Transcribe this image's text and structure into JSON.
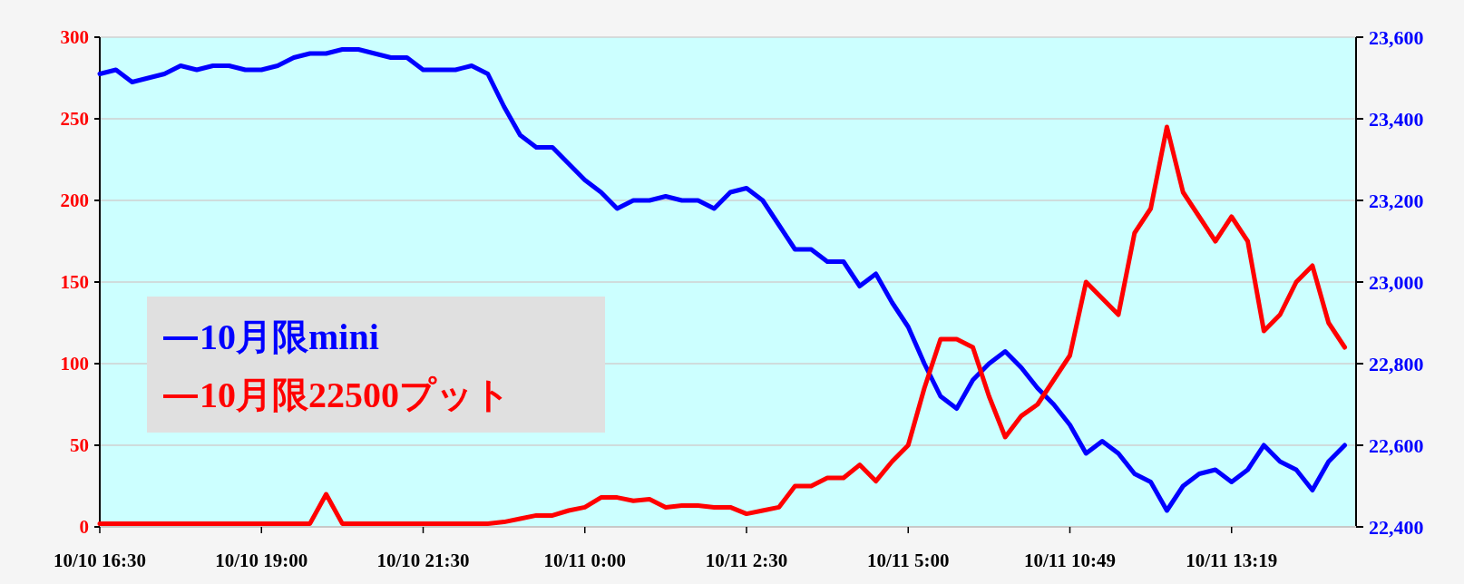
{
  "chart_data": {
    "type": "line",
    "categories": [
      "10/10 16:30",
      null,
      null,
      null,
      null,
      null,
      null,
      null,
      null,
      null,
      "10/10 19:00",
      null,
      null,
      null,
      null,
      null,
      null,
      null,
      null,
      null,
      "10/10 21:30",
      null,
      null,
      null,
      null,
      null,
      null,
      null,
      null,
      null,
      "10/11 0:00",
      null,
      null,
      null,
      null,
      null,
      null,
      null,
      null,
      null,
      "10/11 2:30",
      null,
      null,
      null,
      null,
      null,
      null,
      null,
      null,
      null,
      "10/11 5:00",
      null,
      null,
      null,
      null,
      null,
      null,
      null,
      null,
      null,
      "10/11 10:49",
      null,
      null,
      null,
      null,
      null,
      null,
      null,
      null,
      null,
      "10/11 13:19",
      null,
      null,
      null,
      null,
      null,
      null,
      null
    ],
    "series": [
      {
        "name": "10月限mini",
        "color": "#0000ff",
        "axis": "y2",
        "values": [
          23510,
          23520,
          23490,
          23500,
          23510,
          23530,
          23520,
          23530,
          23530,
          23520,
          23520,
          23530,
          23550,
          23560,
          23560,
          23570,
          23570,
          23560,
          23550,
          23550,
          23520,
          23520,
          23520,
          23530,
          23510,
          23430,
          23360,
          23330,
          23330,
          23290,
          23250,
          23220,
          23180,
          23200,
          23200,
          23210,
          23200,
          23200,
          23180,
          23220,
          23230,
          23200,
          23140,
          23080,
          23080,
          23050,
          23050,
          22990,
          23020,
          22950,
          22890,
          22800,
          22720,
          22690,
          22760,
          22800,
          22830,
          22790,
          22740,
          22700,
          22650,
          22580,
          22610,
          22580,
          22530,
          22510,
          22440,
          22500,
          22530,
          22540,
          22510,
          22540,
          22600,
          22560,
          22540,
          22490,
          22560,
          22600
        ]
      },
      {
        "name": "10月限22500プット",
        "color": "#ff0000",
        "values": [
          2,
          2,
          2,
          2,
          2,
          2,
          2,
          2,
          2,
          2,
          2,
          2,
          2,
          2,
          20,
          2,
          2,
          2,
          2,
          2,
          2,
          2,
          2,
          2,
          2,
          3,
          5,
          7,
          7,
          10,
          12,
          18,
          18,
          16,
          17,
          12,
          13,
          13,
          12,
          12,
          8,
          10,
          12,
          25,
          25,
          30,
          30,
          38,
          28,
          40,
          50,
          85,
          115,
          115,
          110,
          80,
          55,
          68,
          75,
          90,
          105,
          150,
          140,
          130,
          180,
          195,
          245,
          205,
          190,
          175,
          190,
          175,
          120,
          130,
          150,
          160,
          125,
          110
        ]
      }
    ],
    "ylim": [
      0,
      300
    ],
    "yticks": [
      0,
      50,
      100,
      150,
      200,
      250,
      300
    ],
    "y2lim": [
      22400,
      23600
    ],
    "y2ticks": [
      {
        "value": 22400,
        "label": "22,400"
      },
      {
        "value": 22600,
        "label": "22,600"
      },
      {
        "value": 22800,
        "label": "22,800"
      },
      {
        "value": 23000,
        "label": "23,000"
      },
      {
        "value": 23200,
        "label": "23,200"
      },
      {
        "value": 23400,
        "label": "23,400"
      },
      {
        "value": 23600,
        "label": "23,600"
      }
    ],
    "grid": "y",
    "legend": "left"
  }
}
